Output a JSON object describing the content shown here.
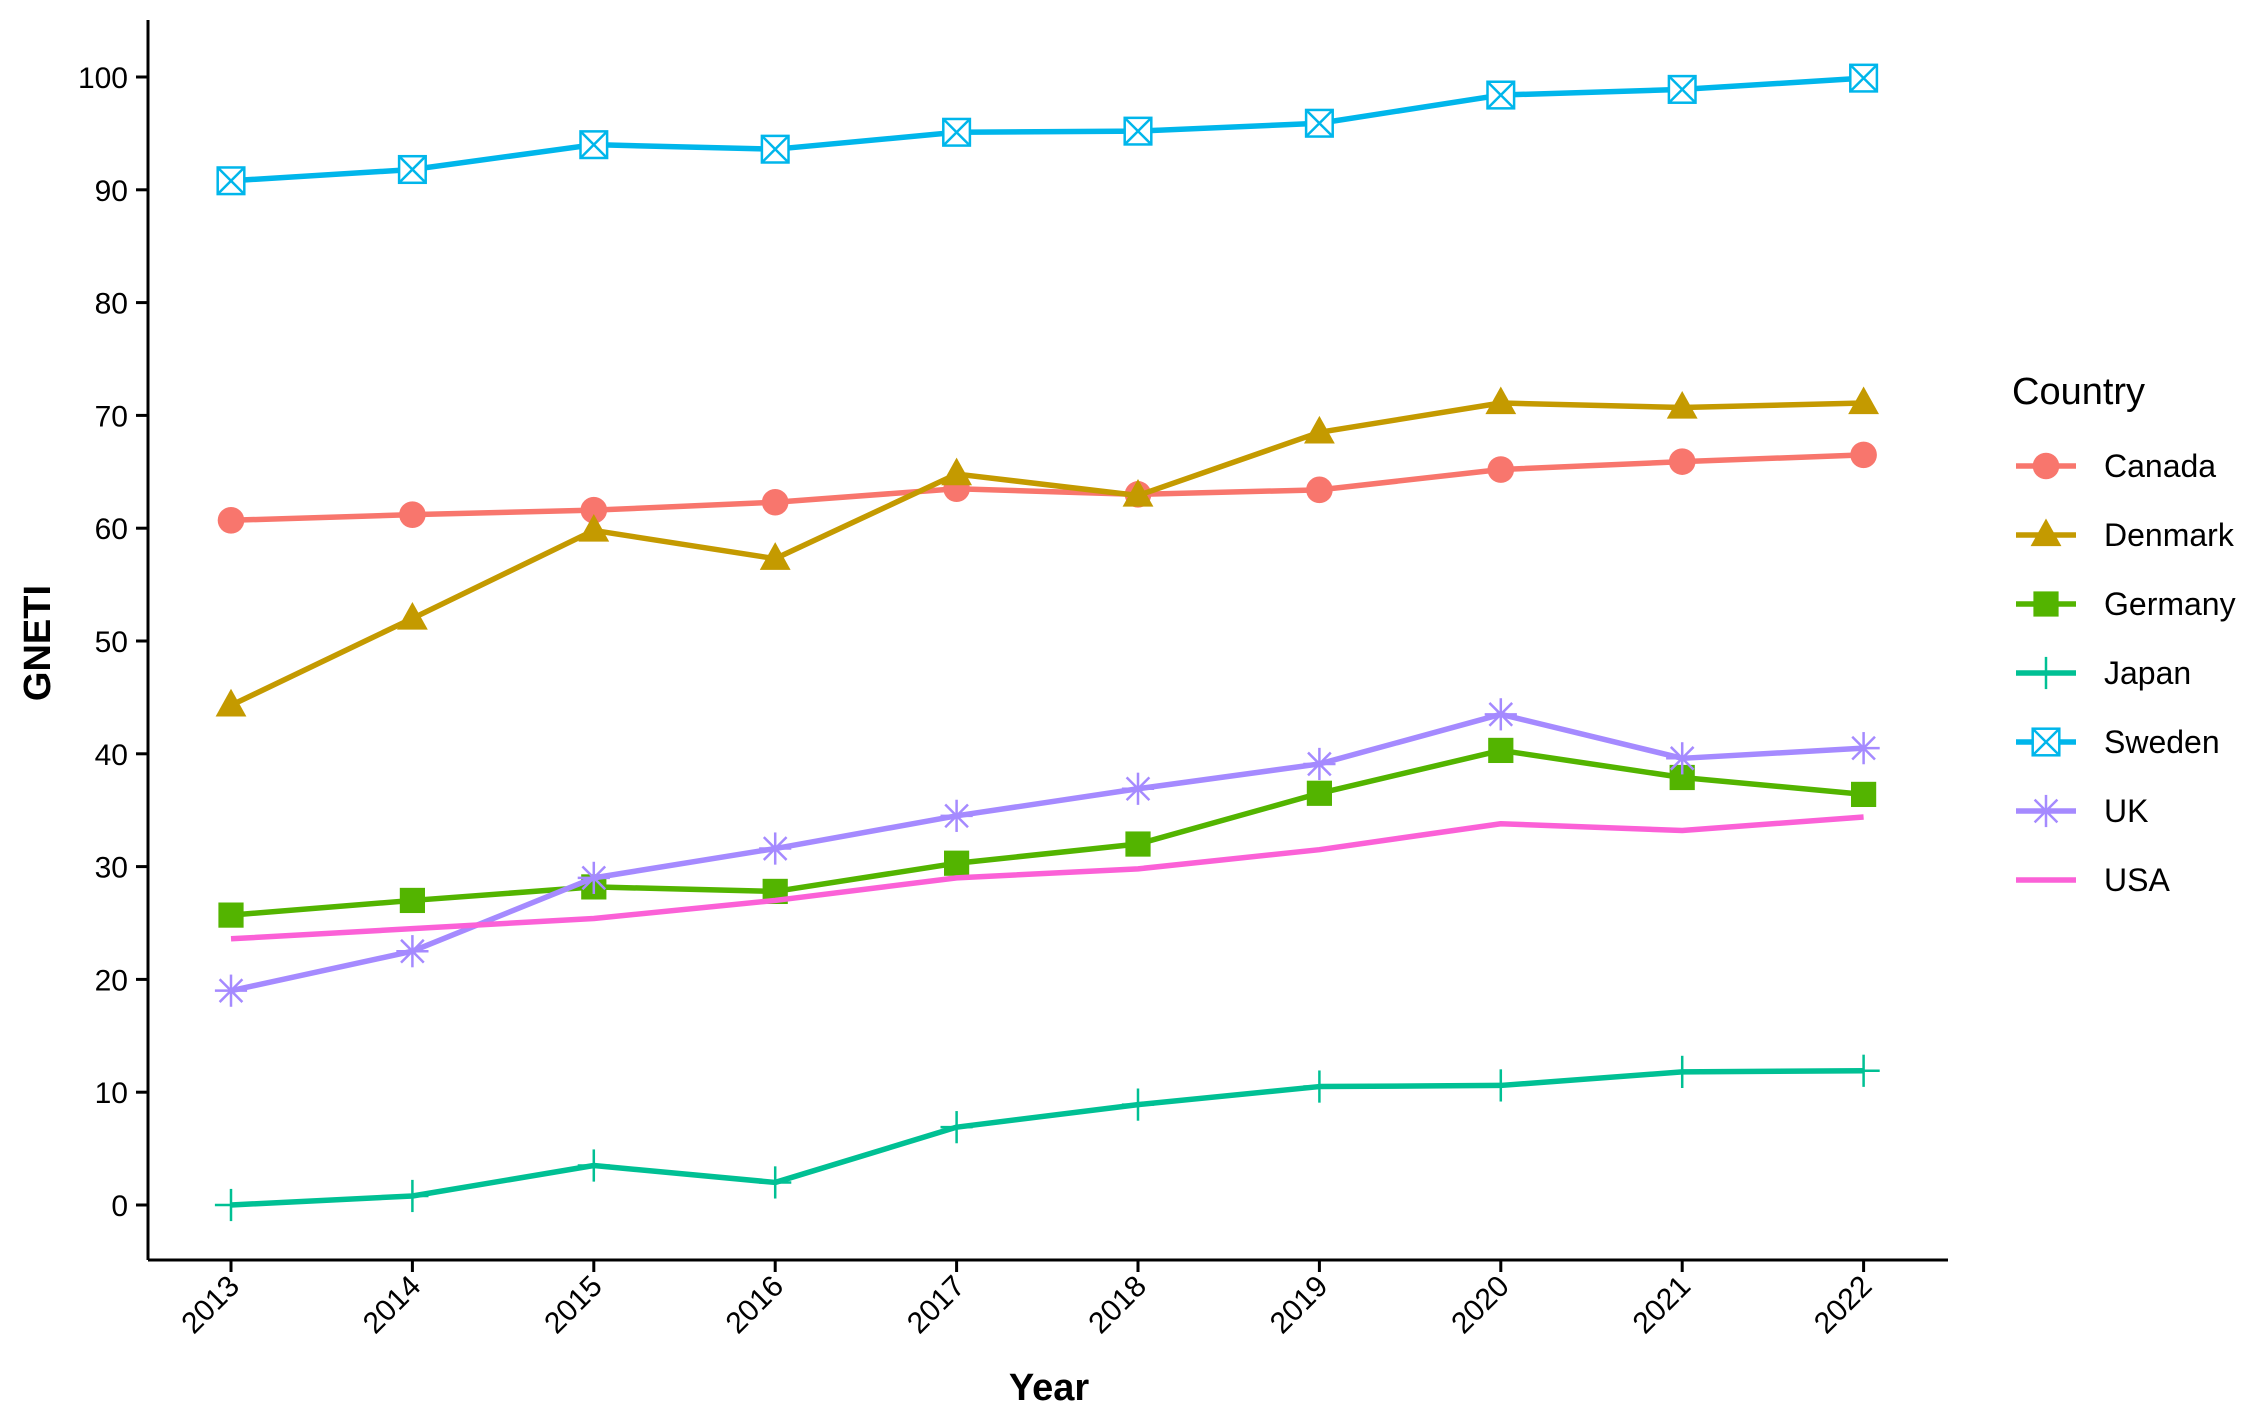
{
  "chart_data": {
    "type": "line",
    "xlabel": "Year",
    "ylabel": "GNETI",
    "x": [
      2013,
      2014,
      2015,
      2016,
      2017,
      2018,
      2019,
      2020,
      2021,
      2022
    ],
    "x_tick_labels": [
      "2013",
      "2014",
      "2015",
      "2016",
      "2017",
      "2018",
      "2019",
      "2020",
      "2021",
      "2022"
    ],
    "y_ticks": [
      0,
      10,
      20,
      30,
      40,
      50,
      60,
      70,
      80,
      90,
      100
    ],
    "y_tick_labels": [
      "0",
      "10",
      "20",
      "30",
      "40",
      "50",
      "60",
      "70",
      "80",
      "90",
      "100"
    ],
    "ylim": [
      -5,
      105
    ],
    "grid": false,
    "legend": {
      "title": "Country",
      "position": "right"
    },
    "series": [
      {
        "name": "Canada",
        "color": "#F8766D",
        "marker": "circle",
        "values": [
          60.7,
          61.2,
          61.6,
          62.3,
          63.5,
          63.0,
          63.4,
          65.2,
          65.9,
          66.5
        ]
      },
      {
        "name": "Denmark",
        "color": "#C49A00",
        "marker": "triangle",
        "values": [
          44.3,
          52.0,
          59.8,
          57.3,
          64.8,
          62.9,
          68.5,
          71.1,
          70.7,
          71.1
        ]
      },
      {
        "name": "Germany",
        "color": "#53B400",
        "marker": "square",
        "values": [
          25.7,
          27.0,
          28.2,
          27.8,
          30.3,
          32.0,
          36.5,
          40.3,
          37.9,
          36.4
        ]
      },
      {
        "name": "Japan",
        "color": "#00C094",
        "marker": "plus",
        "values": [
          0.0,
          0.8,
          3.5,
          2.0,
          6.9,
          8.9,
          10.5,
          10.6,
          11.8,
          11.9
        ]
      },
      {
        "name": "Sweden",
        "color": "#00B6EB",
        "marker": "square-cross",
        "values": [
          90.8,
          91.8,
          94.0,
          93.6,
          95.1,
          95.2,
          95.9,
          98.4,
          98.9,
          99.9
        ]
      },
      {
        "name": "UK",
        "color": "#A58AFF",
        "marker": "asterisk",
        "values": [
          19.0,
          22.5,
          29.0,
          31.6,
          34.5,
          36.9,
          39.1,
          43.5,
          39.6,
          40.5
        ]
      },
      {
        "name": "USA",
        "color": "#FB61D7",
        "marker": "none",
        "values": [
          23.6,
          24.5,
          25.4,
          27.0,
          29.0,
          29.8,
          31.5,
          33.8,
          33.2,
          34.4
        ]
      }
    ]
  }
}
